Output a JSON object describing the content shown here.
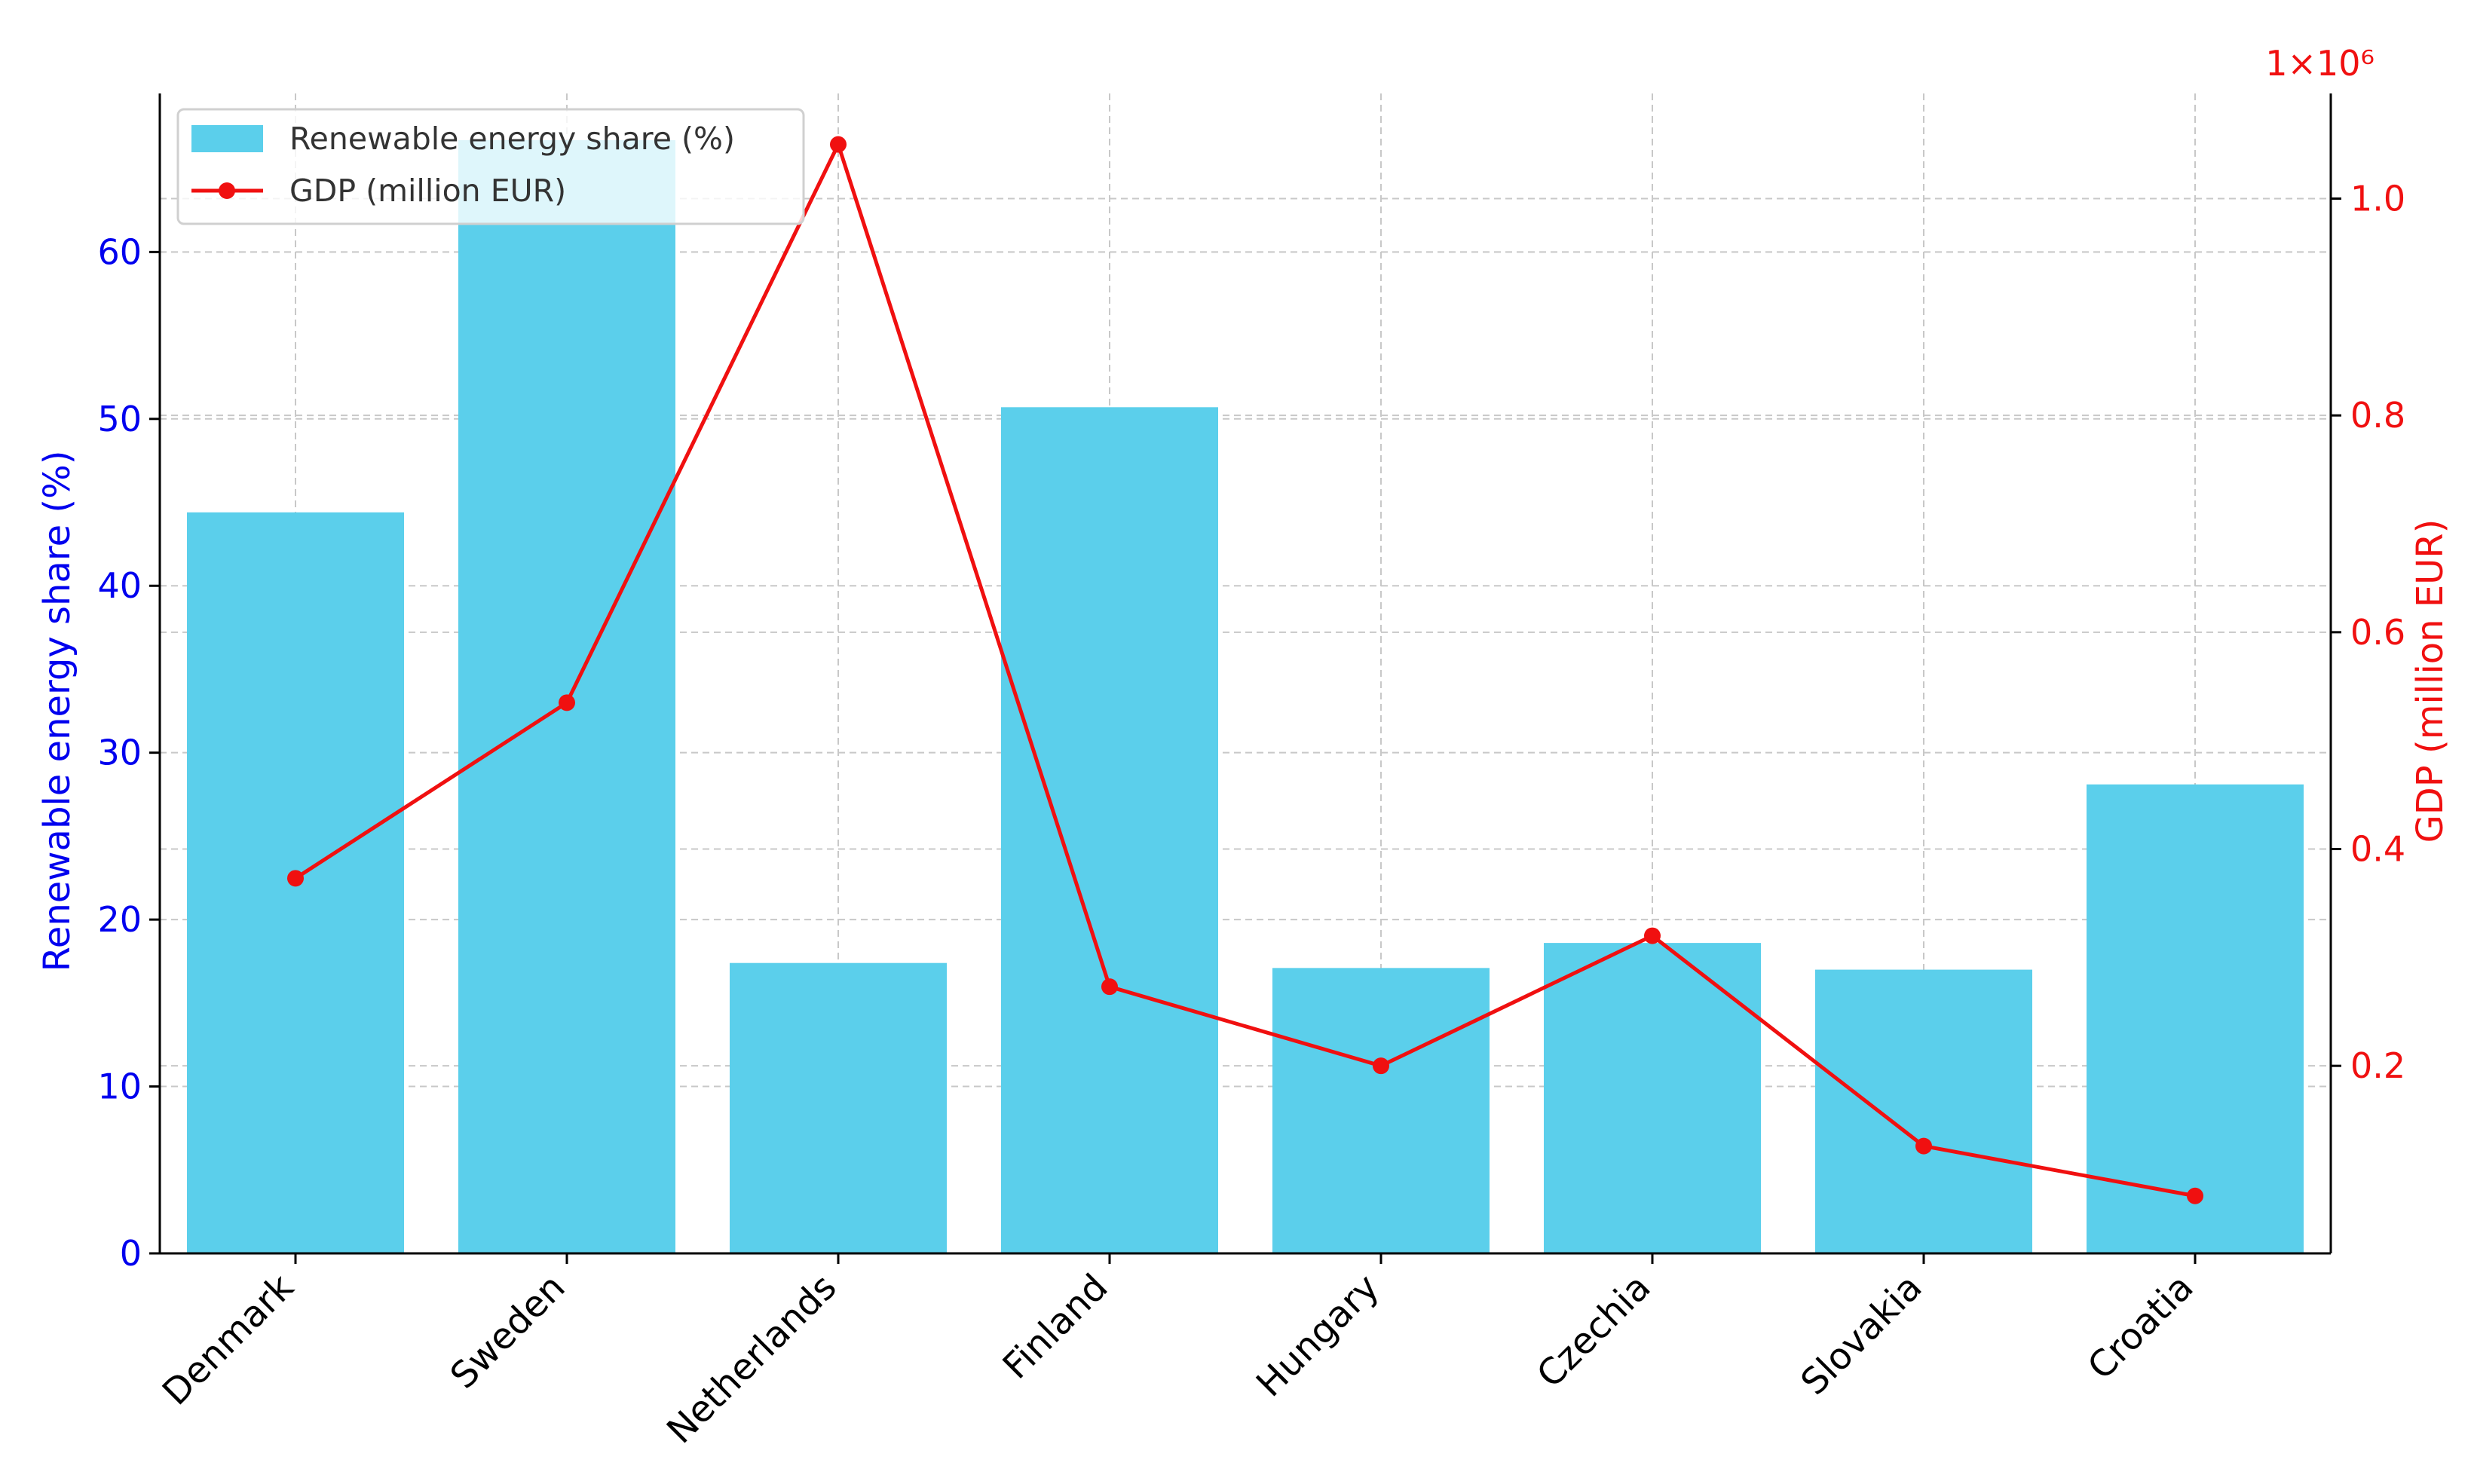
{
  "chart_data": {
    "type": "bar+line",
    "categories": [
      "Denmark",
      "Sweden",
      "Netherlands",
      "Finland",
      "Hungary",
      "Czechia",
      "Slovakia",
      "Croatia"
    ],
    "series": [
      {
        "name": "Renewable energy share (%)",
        "type": "bar",
        "axis": "left",
        "color": "#5bcfeb",
        "values": [
          44.4,
          66.7,
          17.4,
          50.7,
          17.1,
          18.6,
          17.0,
          28.1
        ]
      },
      {
        "name": "GDP (million EUR)",
        "type": "line",
        "axis": "right",
        "color": "#f01010",
        "values": [
          373000,
          535000,
          1050000,
          273000,
          200000,
          320000,
          126000,
          80000
        ]
      }
    ],
    "ylabel_left": "Renewable energy share (%)",
    "ylabel_right": "GDP (million EUR)",
    "y_left_ticks": [
      "0",
      "10",
      "20",
      "30",
      "40",
      "50",
      "60"
    ],
    "y_left_tick_values": [
      0,
      10,
      20,
      30,
      40,
      50,
      60
    ],
    "ylim_left": [
      0,
      69.5
    ],
    "y_right_ticks": [
      "0.2",
      "0.4",
      "0.6",
      "0.8",
      "1.0"
    ],
    "y_right_tick_values": [
      200000,
      400000,
      600000,
      800000,
      1000000
    ],
    "ylim_right": [
      27000,
      1097000
    ],
    "y_right_offset_text": "1×10⁶",
    "legend_position": "top-left",
    "grid": true,
    "left_axis_color": "#0000ee",
    "right_axis_color": "#f01010"
  }
}
